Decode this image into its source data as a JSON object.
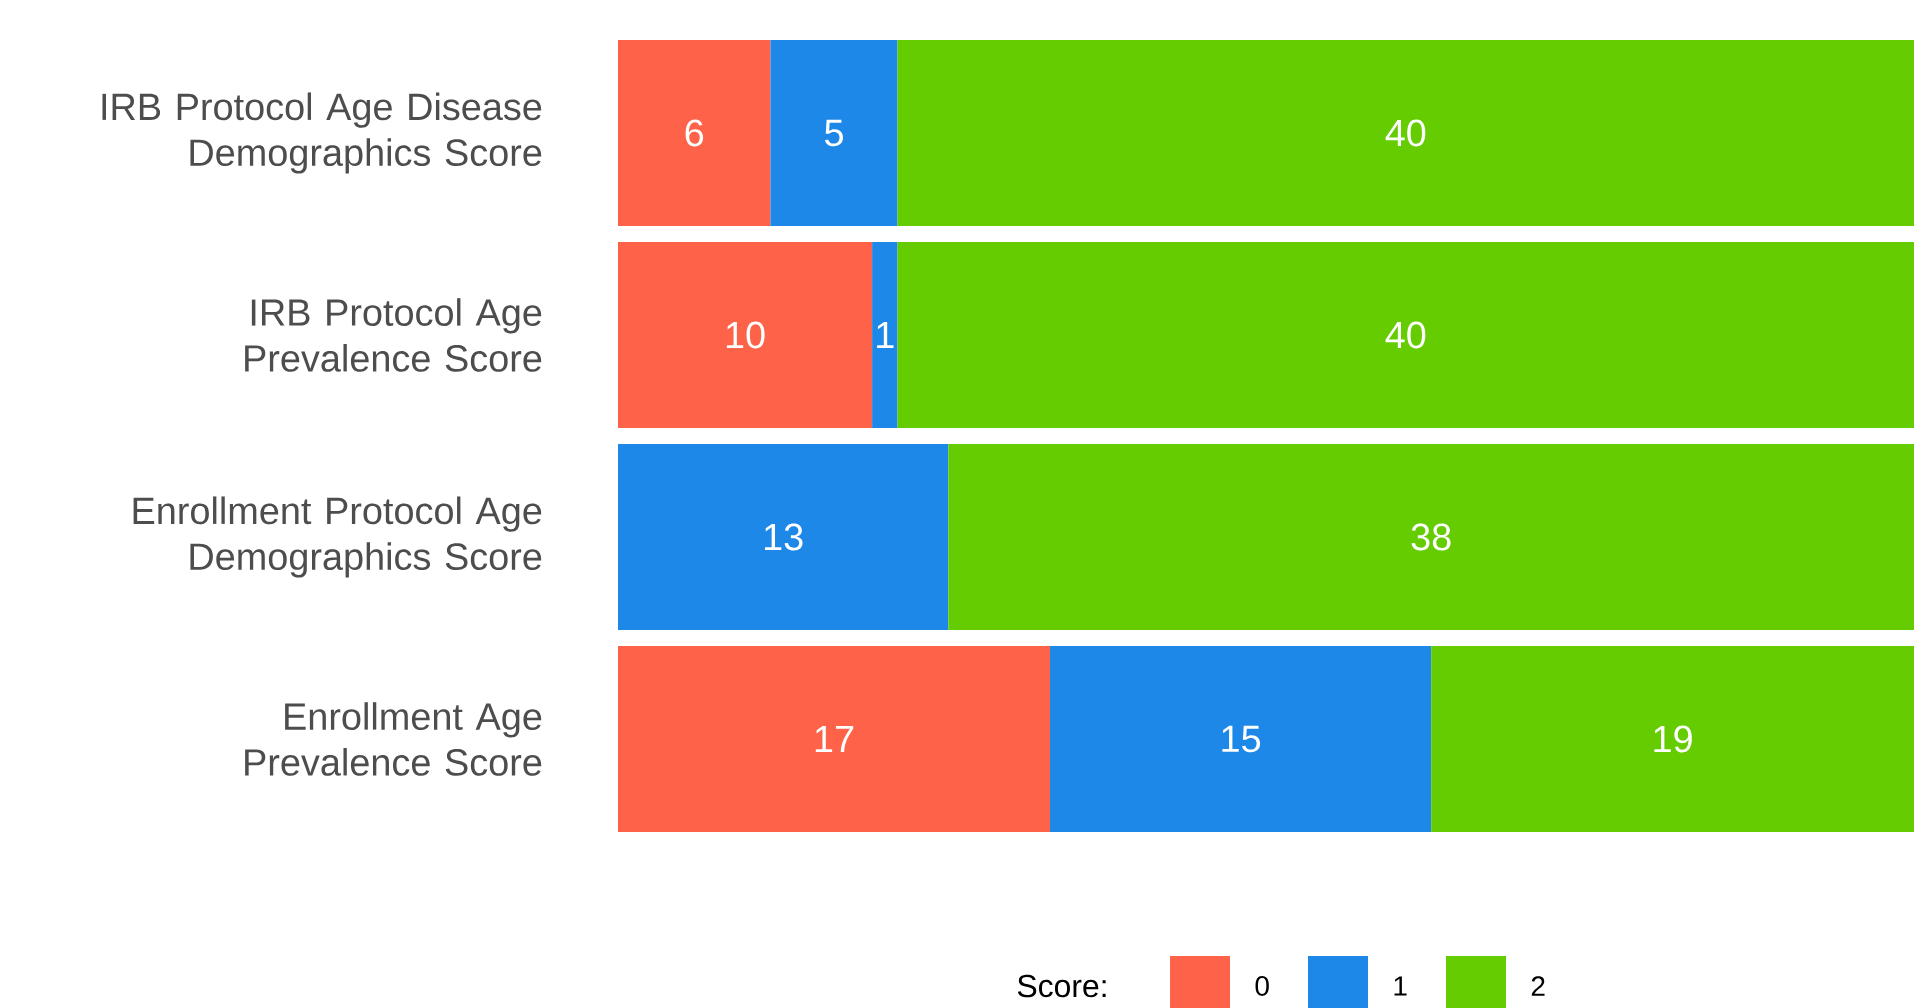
{
  "chart_data": {
    "type": "bar",
    "orientation": "horizontal",
    "stacked": true,
    "data_labels": true,
    "legend": "bottom",
    "legend_title": "Score:",
    "categories": [
      "IRB Protocol Age Disease Demographics Score",
      "IRB Protocol Age Prevalence Score",
      "Enrollment Protocol Age Demographics Score",
      "Enrollment Age Prevalence Score"
    ],
    "series": [
      {
        "name": "0",
        "color": "#fe6349",
        "values": [
          6,
          10,
          null,
          17
        ]
      },
      {
        "name": "1",
        "color": "#1e88e8",
        "values": [
          5,
          1,
          13,
          15
        ]
      },
      {
        "name": "2",
        "color": "#64cc00",
        "values": [
          40,
          40,
          38,
          19
        ]
      }
    ]
  }
}
